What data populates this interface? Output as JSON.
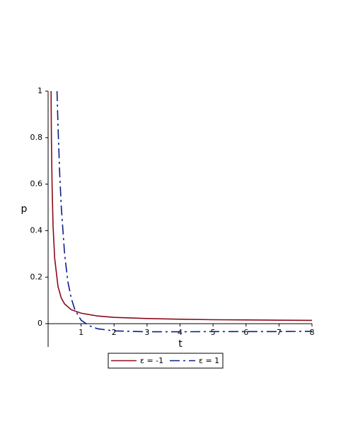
{
  "chart_data": {
    "type": "line",
    "x_label": "t",
    "y_label": "p",
    "xlim": [
      0,
      8
    ],
    "ylim": [
      -0.1,
      1
    ],
    "xticks": [
      1,
      2,
      3,
      4,
      5,
      6,
      7,
      8
    ],
    "yticks": [
      0,
      0.2,
      0.4,
      0.6,
      0.8,
      1
    ],
    "series": [
      {
        "name": "ε = -1",
        "color": "#8b0a1a",
        "dash": "none",
        "x": [
          0.09,
          0.1,
          0.12,
          0.15,
          0.2,
          0.3,
          0.4,
          0.5,
          0.7,
          1,
          1.5,
          2,
          3,
          4,
          5,
          6,
          7,
          8
        ],
        "values": [
          1,
          0.8,
          0.6,
          0.42,
          0.28,
          0.16,
          0.11,
          0.085,
          0.06,
          0.045,
          0.033,
          0.027,
          0.022,
          0.019,
          0.017,
          0.016,
          0.015,
          0.014
        ]
      },
      {
        "name": "ε = 1",
        "color": "#0c1e8a",
        "dash": "dash-dot",
        "x": [
          0.27,
          0.3,
          0.35,
          0.4,
          0.5,
          0.6,
          0.7,
          0.8,
          0.9,
          1,
          1.15,
          1.3,
          1.5,
          2,
          3,
          4,
          5,
          6,
          7,
          8
        ],
        "values": [
          1,
          0.85,
          0.65,
          0.5,
          0.3,
          0.18,
          0.11,
          0.065,
          0.038,
          0.015,
          0,
          -0.012,
          -0.022,
          -0.031,
          -0.035,
          -0.035,
          -0.034,
          -0.034,
          -0.034,
          -0.033
        ]
      }
    ]
  }
}
